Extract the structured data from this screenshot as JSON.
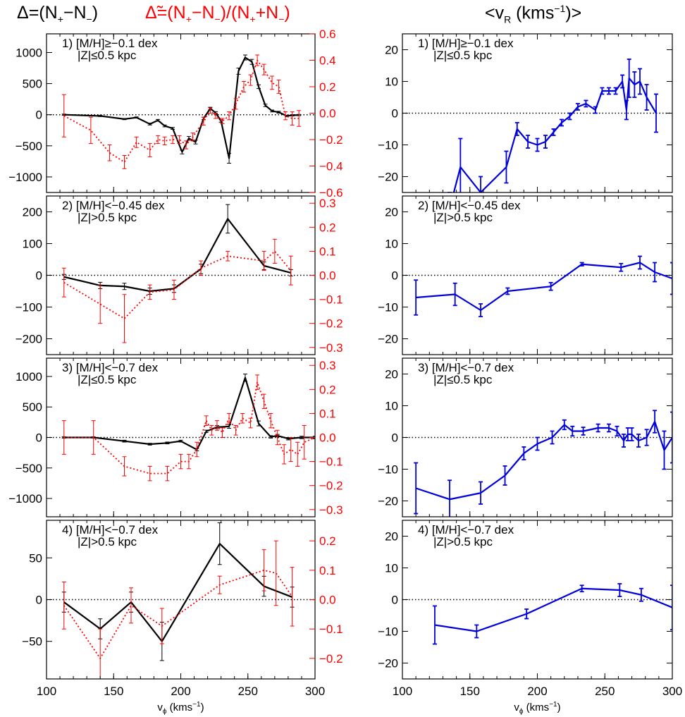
{
  "headers": {
    "delta_prefix": "Δ=(N",
    "delta_plus": "+",
    "delta_mid": "−N",
    "delta_minus": "−",
    "delta_end": ")",
    "tilde_prefix": "Δ̃=(N",
    "tilde_plus": "+",
    "tilde_mid1": "−N",
    "tilde_minus": "−",
    "tilde_mid2": ")/(N",
    "tilde_plus2": "+",
    "tilde_mid3": "+N",
    "tilde_minus2": "−",
    "tilde_end": ")",
    "vr_prefix": "<v",
    "vr_sub": "R",
    "vr_mid": " (kms",
    "vr_sup": "−1",
    "vr_end": ")>"
  },
  "colors": {
    "black": "#000000",
    "red": "#ff0000",
    "blue": "#0000dd"
  },
  "chart_data": [
    {
      "type": "line",
      "panel": "left-1",
      "label_line1": "1) [M/H]≥−0.1 dex",
      "label_line2": "|Z|≤0.5 kpc",
      "xlim": [
        100,
        300
      ],
      "ylim": [
        -1250,
        1300
      ],
      "yticks": [
        -1000,
        -500,
        0,
        500,
        1000
      ],
      "y2lim": [
        -0.6,
        0.6
      ],
      "y2ticks": [
        -0.6,
        -0.4,
        -0.2,
        0.0,
        0.2,
        0.4,
        0.6
      ],
      "xticks": [
        100,
        150,
        200,
        250,
        300
      ],
      "series": [
        {
          "axis": "left",
          "color": "black",
          "x": [
            113,
            140,
            158,
            167,
            177,
            183,
            188,
            194,
            201,
            206,
            211,
            217,
            222,
            226,
            230,
            236,
            243,
            248,
            253,
            258,
            263,
            268,
            273,
            279,
            283,
            288
          ],
          "y": [
            0,
            -20,
            -70,
            -45,
            -150,
            -90,
            -180,
            -220,
            -600,
            -380,
            -440,
            -60,
            100,
            30,
            -100,
            -700,
            700,
            920,
            850,
            450,
            150,
            60,
            40,
            -20,
            -10,
            -5
          ],
          "err": [
            10,
            10,
            10,
            10,
            15,
            15,
            15,
            15,
            30,
            30,
            30,
            20,
            20,
            20,
            20,
            80,
            50,
            40,
            40,
            30,
            20,
            15,
            15,
            10,
            10,
            10
          ]
        },
        {
          "axis": "right",
          "color": "red",
          "x": [
            113,
            133,
            147,
            158,
            167,
            177,
            183,
            188,
            194,
            199,
            204,
            209,
            217,
            222,
            226,
            231,
            236,
            241,
            247,
            252,
            257,
            262,
            268,
            273,
            278,
            283,
            288
          ],
          "y": [
            -0.02,
            -0.13,
            -0.3,
            -0.37,
            -0.22,
            -0.28,
            -0.2,
            -0.21,
            -0.2,
            -0.2,
            -0.24,
            -0.18,
            -0.06,
            0.02,
            -0.02,
            -0.06,
            -0.02,
            0.07,
            0.2,
            0.25,
            0.4,
            0.33,
            0.23,
            0.2,
            -0.02,
            -0.04,
            -0.04
          ],
          "err": [
            0.16,
            0.1,
            0.06,
            0.05,
            0.04,
            0.05,
            0.03,
            0.03,
            0.03,
            0.03,
            0.03,
            0.03,
            0.03,
            0.02,
            0.02,
            0.02,
            0.03,
            0.04,
            0.04,
            0.04,
            0.04,
            0.04,
            0.05,
            0.05,
            0.03,
            0.05,
            0.06
          ]
        }
      ]
    },
    {
      "type": "line",
      "panel": "left-2",
      "label_line1": "2) [M/H]<−0.45 dex",
      "label_line2": "|Z|>0.5 kpc",
      "xlim": [
        100,
        300
      ],
      "ylim": [
        -250,
        250
      ],
      "yticks": [
        -200,
        -100,
        0,
        100,
        200
      ],
      "y2lim": [
        -0.33,
        0.33
      ],
      "y2ticks": [
        -0.3,
        -0.2,
        -0.1,
        0.0,
        0.1,
        0.2,
        0.3
      ],
      "xticks": [
        100,
        150,
        200,
        250,
        300
      ],
      "series": [
        {
          "axis": "left",
          "color": "black",
          "x": [
            113,
            140,
            158,
            177,
            195,
            215,
            235,
            262,
            282
          ],
          "y": [
            -5,
            -32,
            -35,
            -50,
            -42,
            20,
            178,
            30,
            8
          ],
          "err": [
            8,
            10,
            10,
            10,
            12,
            15,
            45,
            12,
            10
          ]
        },
        {
          "axis": "right",
          "color": "red",
          "x": [
            113,
            140,
            158,
            177,
            195,
            215,
            235,
            262,
            270,
            282
          ],
          "y": [
            -0.03,
            -0.12,
            -0.18,
            -0.07,
            -0.06,
            0.03,
            0.08,
            0.06,
            0.1,
            0.02
          ],
          "err": [
            0.06,
            0.08,
            0.1,
            0.03,
            0.04,
            0.03,
            0.02,
            0.04,
            0.05,
            0.06
          ]
        }
      ]
    },
    {
      "type": "line",
      "panel": "left-3",
      "label_line1": "3) [M/H]<−0.7 dex",
      "label_line2": "|Z|≤0.5 kpc",
      "xlim": [
        100,
        300
      ],
      "ylim": [
        -1300,
        1300
      ],
      "yticks": [
        -1000,
        -500,
        0,
        500,
        1000
      ],
      "y2lim": [
        -0.33,
        0.33
      ],
      "y2ticks": [
        -0.3,
        -0.2,
        -0.1,
        0.0,
        0.1,
        0.2,
        0.3
      ],
      "xticks": [
        100,
        150,
        200,
        250,
        300
      ],
      "series": [
        {
          "axis": "left",
          "color": "black",
          "x": [
            113,
            135,
            158,
            177,
            190,
            200,
            212,
            219,
            227,
            236,
            248,
            258,
            267,
            272,
            280,
            290,
            300
          ],
          "y": [
            0,
            0,
            -60,
            -110,
            -90,
            -60,
            -200,
            100,
            170,
            180,
            980,
            230,
            10,
            30,
            -20,
            0,
            0
          ],
          "err": [
            10,
            10,
            15,
            15,
            15,
            15,
            20,
            20,
            25,
            30,
            60,
            40,
            20,
            20,
            20,
            20,
            20
          ]
        },
        {
          "axis": "right",
          "color": "red",
          "x": [
            113,
            135,
            158,
            177,
            190,
            200,
            206,
            212,
            219,
            223,
            227,
            231,
            236,
            241,
            246,
            252,
            257,
            262,
            267,
            272,
            277,
            282,
            287,
            292,
            300
          ],
          "y": [
            0,
            0,
            -0.12,
            -0.15,
            -0.15,
            -0.1,
            -0.1,
            -0.05,
            0.07,
            0.03,
            0.05,
            0.02,
            0.08,
            0.03,
            0.08,
            0.06,
            0.23,
            0.15,
            0.07,
            0.0,
            -0.07,
            -0.05,
            -0.07,
            -0.02,
            0.0
          ],
          "err": [
            0.07,
            0.07,
            0.04,
            0.03,
            0.03,
            0.03,
            0.03,
            0.03,
            0.02,
            0.02,
            0.02,
            0.02,
            0.02,
            0.02,
            0.02,
            0.02,
            0.03,
            0.03,
            0.03,
            0.03,
            0.04,
            0.05,
            0.05,
            0.07,
            0.1
          ]
        }
      ]
    },
    {
      "type": "line",
      "panel": "left-4",
      "label_line1": "4) [M/H]<−0.7 dex",
      "label_line2": "|Z|>0.5 kpc",
      "xlim": [
        100,
        300
      ],
      "ylim": [
        -95,
        95
      ],
      "yticks": [
        -50,
        0,
        50
      ],
      "y2lim": [
        -0.27,
        0.27
      ],
      "y2ticks": [
        -0.2,
        -0.1,
        0.0,
        0.1,
        0.2
      ],
      "xticks": [
        100,
        150,
        200,
        250,
        300
      ],
      "xlabel": "v",
      "xlabel_sub": "ϕ",
      "xlabel_unit": " (kms",
      "xlabel_sup": "−1",
      "xlabel_end": ")",
      "series": [
        {
          "axis": "left",
          "color": "black",
          "x": [
            113,
            140,
            163,
            186,
            229,
            262,
            283
          ],
          "y": [
            -3,
            -35,
            -3,
            -50,
            67,
            16,
            3
          ],
          "err": [
            12,
            12,
            12,
            23,
            25,
            12,
            12
          ]
        },
        {
          "axis": "right",
          "color": "red",
          "x": [
            113,
            140,
            163,
            186,
            229,
            262,
            271,
            283
          ],
          "y": [
            -0.02,
            -0.2,
            -0.02,
            -0.09,
            0.05,
            0.1,
            0.09,
            0.01
          ],
          "err": [
            0.08,
            0.1,
            0.06,
            0.06,
            0.03,
            0.07,
            0.11,
            0.1
          ]
        }
      ]
    },
    {
      "type": "line",
      "panel": "right-1",
      "label_line1": "1) [M/H]≥−0.1 dex",
      "label_line2": "|Z|≤0.5 kpc",
      "xlim": [
        100,
        300
      ],
      "ylim": [
        -25,
        25
      ],
      "yticks": [
        -20,
        -10,
        0,
        10,
        20
      ],
      "xticks": [
        100,
        150,
        200,
        250,
        300
      ],
      "series": [
        {
          "axis": "left",
          "color": "blue",
          "x": [
            135,
            143,
            158,
            177,
            185,
            193,
            200,
            206,
            212,
            218,
            224,
            230,
            236,
            243,
            248,
            253,
            258,
            263,
            266,
            268,
            272,
            276,
            281,
            288
          ],
          "y": [
            -30,
            -17,
            -25,
            -17,
            -5,
            -9,
            -10,
            -9,
            -6,
            -3,
            -1,
            2,
            3,
            1,
            7,
            7,
            7,
            10,
            1,
            11,
            9,
            10,
            5,
            0
          ],
          "err": [
            5,
            9,
            5,
            5,
            2,
            2,
            2,
            2,
            1,
            1,
            1,
            1,
            1,
            1,
            1,
            1,
            1,
            2,
            3,
            6,
            4,
            4,
            4,
            6
          ]
        }
      ]
    },
    {
      "type": "line",
      "panel": "right-2",
      "label_line1": "2) [M/H]<−0.45 dex",
      "label_line2": "|Z|>0.5 kpc",
      "xlim": [
        100,
        300
      ],
      "ylim": [
        -25,
        25
      ],
      "yticks": [
        -20,
        -10,
        0,
        10,
        20
      ],
      "xticks": [
        100,
        150,
        200,
        250,
        300
      ],
      "series": [
        {
          "axis": "left",
          "color": "blue",
          "x": [
            110,
            139,
            158,
            178,
            210,
            233,
            262,
            276,
            287,
            300
          ],
          "y": [
            -7,
            -6,
            -11,
            -5,
            -3.5,
            3.5,
            2.5,
            4,
            1,
            -1
          ],
          "err": [
            5.5,
            3.5,
            2,
            1,
            1.2,
            0.5,
            1.2,
            2,
            3,
            5
          ]
        }
      ]
    },
    {
      "type": "line",
      "panel": "right-3",
      "label_line1": "3) [M/H]<−0.7 dex",
      "label_line2": "|Z|≤0.5 kpc",
      "xlim": [
        100,
        300
      ],
      "ylim": [
        -25,
        25
      ],
      "yticks": [
        -20,
        -10,
        0,
        10,
        20
      ],
      "xticks": [
        100,
        150,
        200,
        250,
        300
      ],
      "series": [
        {
          "axis": "left",
          "color": "blue",
          "x": [
            110,
            135,
            158,
            176,
            190,
            200,
            211,
            220,
            226,
            234,
            245,
            253,
            259,
            264,
            267,
            270,
            275,
            281,
            287,
            294,
            300
          ],
          "y": [
            -16,
            -19.5,
            -17.5,
            -12,
            -5,
            -2,
            0,
            4,
            2,
            2,
            3,
            3,
            2,
            -1,
            1,
            1,
            -1,
            0,
            5,
            -4,
            0
          ],
          "err": [
            8,
            6,
            3.5,
            3,
            2,
            2,
            2,
            1.5,
            1.5,
            1.2,
            1.2,
            1.2,
            1.5,
            2,
            2,
            2,
            2,
            2.5,
            3.5,
            6,
            8
          ]
        }
      ]
    },
    {
      "type": "line",
      "panel": "right-4",
      "label_line1": "4) [M/H]<−0.7 dex",
      "label_line2": "|Z|>0.5 kpc",
      "xlim": [
        100,
        300
      ],
      "ylim": [
        -25,
        25
      ],
      "yticks": [
        -20,
        -10,
        0,
        10,
        20
      ],
      "xticks": [
        100,
        150,
        200,
        250,
        300
      ],
      "xlabel": "v",
      "xlabel_sub": "ϕ",
      "xlabel_unit": " (kms",
      "xlabel_sup": "−1",
      "xlabel_end": ")",
      "series": [
        {
          "axis": "left",
          "color": "blue",
          "x": [
            124,
            155,
            192,
            233,
            261,
            277,
            300
          ],
          "y": [
            -8,
            -10,
            -4.5,
            3.5,
            3,
            1.5,
            -2.5
          ],
          "err": [
            6,
            2,
            1.5,
            1,
            2,
            2,
            7
          ]
        }
      ]
    }
  ]
}
